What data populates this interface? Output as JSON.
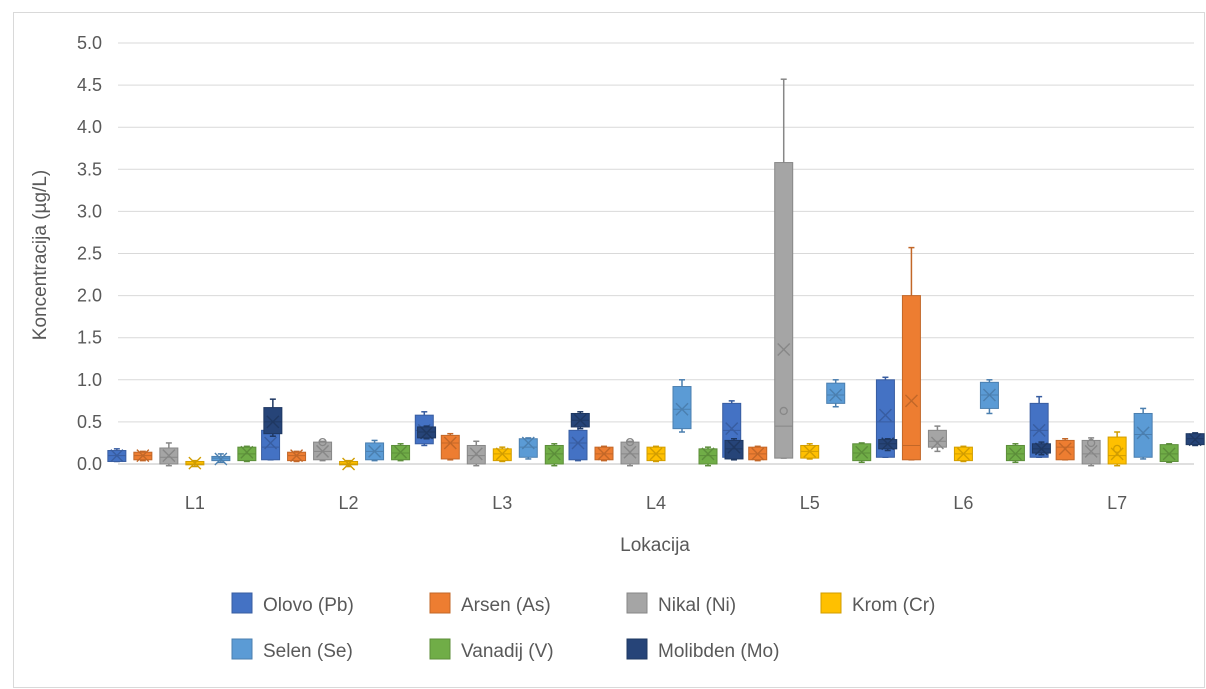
{
  "chart_data": {
    "type": "box",
    "title": "",
    "xlabel": "Lokacija",
    "ylabel": "Koncentracija (µg/L)",
    "ylim": [
      0,
      5
    ],
    "yticks": [
      "0.0",
      "0.5",
      "1.0",
      "1.5",
      "2.0",
      "2.5",
      "3.0",
      "3.5",
      "4.0",
      "4.5",
      "5.0"
    ],
    "categories": [
      "L1",
      "L2",
      "L3",
      "L4",
      "L5",
      "L6",
      "L7"
    ],
    "grid": "horizontal",
    "legend_position": "bottom",
    "series": [
      {
        "name": "Olovo (Pb)",
        "color": "#4472c4",
        "boxes": [
          {
            "min": 0.03,
            "q1": 0.03,
            "median": 0.1,
            "q3": 0.16,
            "max": 0.18,
            "mean": 0.1
          },
          {
            "min": 0.05,
            "q1": 0.05,
            "median": 0.2,
            "q3": 0.4,
            "max": 0.4,
            "mean": 0.25
          },
          {
            "min": 0.22,
            "q1": 0.24,
            "median": 0.4,
            "q3": 0.58,
            "max": 0.62,
            "mean": 0.4
          },
          {
            "min": 0.04,
            "q1": 0.05,
            "median": 0.25,
            "q3": 0.4,
            "max": 0.45,
            "mean": 0.25
          },
          {
            "min": 0.08,
            "q1": 0.08,
            "median": 0.4,
            "q3": 0.72,
            "max": 0.75,
            "mean": 0.42
          },
          {
            "min": 0.08,
            "q1": 0.08,
            "median": 0.5,
            "q3": 1.0,
            "max": 1.03,
            "mean": 0.58
          },
          {
            "min": 0.08,
            "q1": 0.08,
            "median": 0.4,
            "q3": 0.72,
            "max": 0.8,
            "mean": 0.4
          }
        ]
      },
      {
        "name": "Arsen (As)",
        "color": "#ed7d31",
        "boxes": [
          {
            "min": 0.04,
            "q1": 0.05,
            "median": 0.1,
            "q3": 0.14,
            "max": 0.15,
            "mean": 0.1
          },
          {
            "min": 0.03,
            "q1": 0.04,
            "median": 0.1,
            "q3": 0.14,
            "max": 0.15,
            "mean": 0.1
          },
          {
            "min": 0.05,
            "q1": 0.06,
            "median": 0.25,
            "q3": 0.34,
            "max": 0.36,
            "mean": 0.25
          },
          {
            "min": 0.04,
            "q1": 0.05,
            "median": 0.12,
            "q3": 0.2,
            "max": 0.21,
            "mean": 0.12
          },
          {
            "min": 0.04,
            "q1": 0.05,
            "median": 0.12,
            "q3": 0.2,
            "max": 0.21,
            "mean": 0.12
          },
          {
            "min": 0.05,
            "q1": 0.05,
            "median": 0.22,
            "q3": 2.0,
            "max": 2.57,
            "mean": 0.75
          },
          {
            "min": 0.05,
            "q1": 0.05,
            "median": 0.2,
            "q3": 0.28,
            "max": 0.3,
            "mean": 0.18
          }
        ]
      },
      {
        "name": "Nikal (Ni)",
        "color": "#a5a5a5",
        "boxes": [
          {
            "min": -0.02,
            "q1": 0.0,
            "median": 0.08,
            "q3": 0.19,
            "max": 0.25,
            "mean": 0.1
          },
          {
            "min": 0.04,
            "q1": 0.05,
            "median": 0.15,
            "q3": 0.26,
            "max": 0.27,
            "mean": 0.15,
            "outlier": 0.26
          },
          {
            "min": -0.02,
            "q1": 0.0,
            "median": 0.1,
            "q3": 0.22,
            "max": 0.27,
            "mean": 0.12
          },
          {
            "min": -0.02,
            "q1": 0.0,
            "median": 0.12,
            "q3": 0.26,
            "max": 0.27,
            "mean": 0.14,
            "outlier": 0.26
          },
          {
            "min": 0.07,
            "q1": 0.07,
            "median": 0.45,
            "q3": 3.58,
            "max": 4.57,
            "mean": 1.36,
            "outlier": 0.63
          },
          {
            "min": 0.15,
            "q1": 0.2,
            "median": 0.27,
            "q3": 0.4,
            "max": 0.45,
            "mean": 0.25
          },
          {
            "min": -0.02,
            "q1": 0.0,
            "median": 0.12,
            "q3": 0.28,
            "max": 0.31,
            "mean": 0.15,
            "outlier": 0.25
          }
        ]
      },
      {
        "name": "Krom (Cr)",
        "color": "#ffc000",
        "boxes": [
          {
            "min": -0.03,
            "q1": -0.01,
            "median": 0.0,
            "q3": 0.03,
            "max": 0.04,
            "mean": 0.01
          },
          {
            "min": -0.03,
            "q1": -0.01,
            "median": 0.0,
            "q3": 0.03,
            "max": 0.04,
            "mean": 0.0
          },
          {
            "min": 0.03,
            "q1": 0.04,
            "median": 0.12,
            "q3": 0.18,
            "max": 0.2,
            "mean": 0.12
          },
          {
            "min": 0.03,
            "q1": 0.04,
            "median": 0.12,
            "q3": 0.2,
            "max": 0.21,
            "mean": 0.12
          },
          {
            "min": 0.06,
            "q1": 0.07,
            "median": 0.15,
            "q3": 0.22,
            "max": 0.24,
            "mean": 0.15
          },
          {
            "min": 0.03,
            "q1": 0.04,
            "median": 0.12,
            "q3": 0.2,
            "max": 0.21,
            "mean": 0.12
          },
          {
            "min": -0.02,
            "q1": 0.0,
            "median": 0.1,
            "q3": 0.32,
            "max": 0.38,
            "mean": 0.12,
            "outlier": 0.18
          }
        ]
      },
      {
        "name": "Selen (Se)",
        "color": "#5b9bd5",
        "boxes": [
          {
            "min": 0.02,
            "q1": 0.04,
            "median": 0.07,
            "q3": 0.09,
            "max": 0.12,
            "mean": 0.06
          },
          {
            "min": 0.04,
            "q1": 0.05,
            "median": 0.15,
            "q3": 0.25,
            "max": 0.28,
            "mean": 0.15
          },
          {
            "min": 0.06,
            "q1": 0.08,
            "median": 0.2,
            "q3": 0.3,
            "max": 0.31,
            "mean": 0.25
          },
          {
            "min": 0.38,
            "q1": 0.42,
            "median": 0.65,
            "q3": 0.92,
            "max": 1.0,
            "mean": 0.65
          },
          {
            "min": 0.68,
            "q1": 0.72,
            "median": 0.82,
            "q3": 0.96,
            "max": 1.0,
            "mean": 0.82
          },
          {
            "min": 0.6,
            "q1": 0.66,
            "median": 0.82,
            "q3": 0.97,
            "max": 1.0,
            "mean": 0.82
          },
          {
            "min": 0.06,
            "q1": 0.08,
            "median": 0.35,
            "q3": 0.6,
            "max": 0.66,
            "mean": 0.37
          }
        ]
      },
      {
        "name": "Vanadij (V)",
        "color": "#70ad47",
        "boxes": [
          {
            "min": 0.03,
            "q1": 0.04,
            "median": 0.12,
            "q3": 0.2,
            "max": 0.21,
            "mean": 0.14
          },
          {
            "min": 0.04,
            "q1": 0.05,
            "median": 0.13,
            "q3": 0.22,
            "max": 0.24,
            "mean": 0.14
          },
          {
            "min": -0.02,
            "q1": 0.0,
            "median": 0.12,
            "q3": 0.22,
            "max": 0.24,
            "mean": 0.12
          },
          {
            "min": -0.02,
            "q1": 0.0,
            "median": 0.1,
            "q3": 0.18,
            "max": 0.2,
            "mean": 0.12
          },
          {
            "min": 0.02,
            "q1": 0.04,
            "median": 0.13,
            "q3": 0.24,
            "max": 0.25,
            "mean": 0.14
          },
          {
            "min": 0.02,
            "q1": 0.04,
            "median": 0.12,
            "q3": 0.22,
            "max": 0.24,
            "mean": 0.12
          },
          {
            "min": 0.02,
            "q1": 0.03,
            "median": 0.12,
            "q3": 0.23,
            "max": 0.24,
            "mean": 0.12
          }
        ]
      },
      {
        "name": "Molibden (Mo)",
        "color": "#264478",
        "boxes": [
          {
            "min": 0.33,
            "q1": 0.36,
            "median": 0.5,
            "q3": 0.67,
            "max": 0.77,
            "mean": 0.5
          },
          {
            "min": 0.3,
            "q1": 0.31,
            "median": 0.38,
            "q3": 0.44,
            "max": 0.45,
            "mean": 0.37
          },
          {
            "min": 0.42,
            "q1": 0.44,
            "median": 0.52,
            "q3": 0.6,
            "max": 0.62,
            "mean": 0.52
          },
          {
            "min": 0.05,
            "q1": 0.06,
            "median": 0.18,
            "q3": 0.28,
            "max": 0.3,
            "mean": 0.2
          },
          {
            "min": 0.16,
            "q1": 0.18,
            "median": 0.24,
            "q3": 0.29,
            "max": 0.3,
            "mean": 0.24
          },
          {
            "min": 0.11,
            "q1": 0.13,
            "median": 0.18,
            "q3": 0.24,
            "max": 0.26,
            "mean": 0.18
          },
          {
            "min": 0.22,
            "q1": 0.23,
            "median": 0.3,
            "q3": 0.36,
            "max": 0.37,
            "mean": 0.29
          }
        ]
      }
    ]
  }
}
